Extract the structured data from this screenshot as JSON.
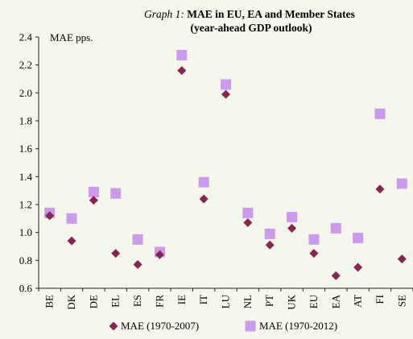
{
  "chart_data": {
    "type": "scatter",
    "title_lead": "Graph 1:",
    "title_main": " MAE in  EU, EA and Member States",
    "subtitle": "(year-ahead GDP outlook)",
    "unit_label": "MAE pps.",
    "xlabel": "",
    "ylabel": "",
    "ylim": [
      0.6,
      2.4
    ],
    "ytick_labels": [
      "0.6",
      "0.8",
      "1.0",
      "1.2",
      "1.4",
      "1.6",
      "1.8",
      "2.0",
      "2.2",
      "2.4"
    ],
    "yticks": [
      0.6,
      0.8,
      1.0,
      1.2,
      1.4,
      1.6,
      1.8,
      2.0,
      2.2,
      2.4
    ],
    "categories": [
      "BE",
      "DK",
      "DE",
      "EL",
      "ES",
      "FR",
      "IE",
      "IT",
      "LU",
      "NL",
      "PT",
      "UK",
      "EU",
      "EA",
      "AT",
      "FI",
      "SE"
    ],
    "grid": false,
    "legend_position": "bottom",
    "series": [
      {
        "name": "MAE (1970-2007)",
        "marker": "diamond",
        "color": "#8b2252",
        "values": [
          1.12,
          0.94,
          1.23,
          0.85,
          0.77,
          0.84,
          2.16,
          1.24,
          1.99,
          1.07,
          0.91,
          1.03,
          0.85,
          0.69,
          0.75,
          1.31,
          0.81
        ]
      },
      {
        "name": "MAE (1970-2012)",
        "marker": "square",
        "color": "#cc99ee",
        "values": [
          1.14,
          1.1,
          1.29,
          1.28,
          0.95,
          0.86,
          2.27,
          1.36,
          2.06,
          1.14,
          0.99,
          1.11,
          0.95,
          1.03,
          0.96,
          1.85,
          1.35
        ]
      }
    ]
  }
}
